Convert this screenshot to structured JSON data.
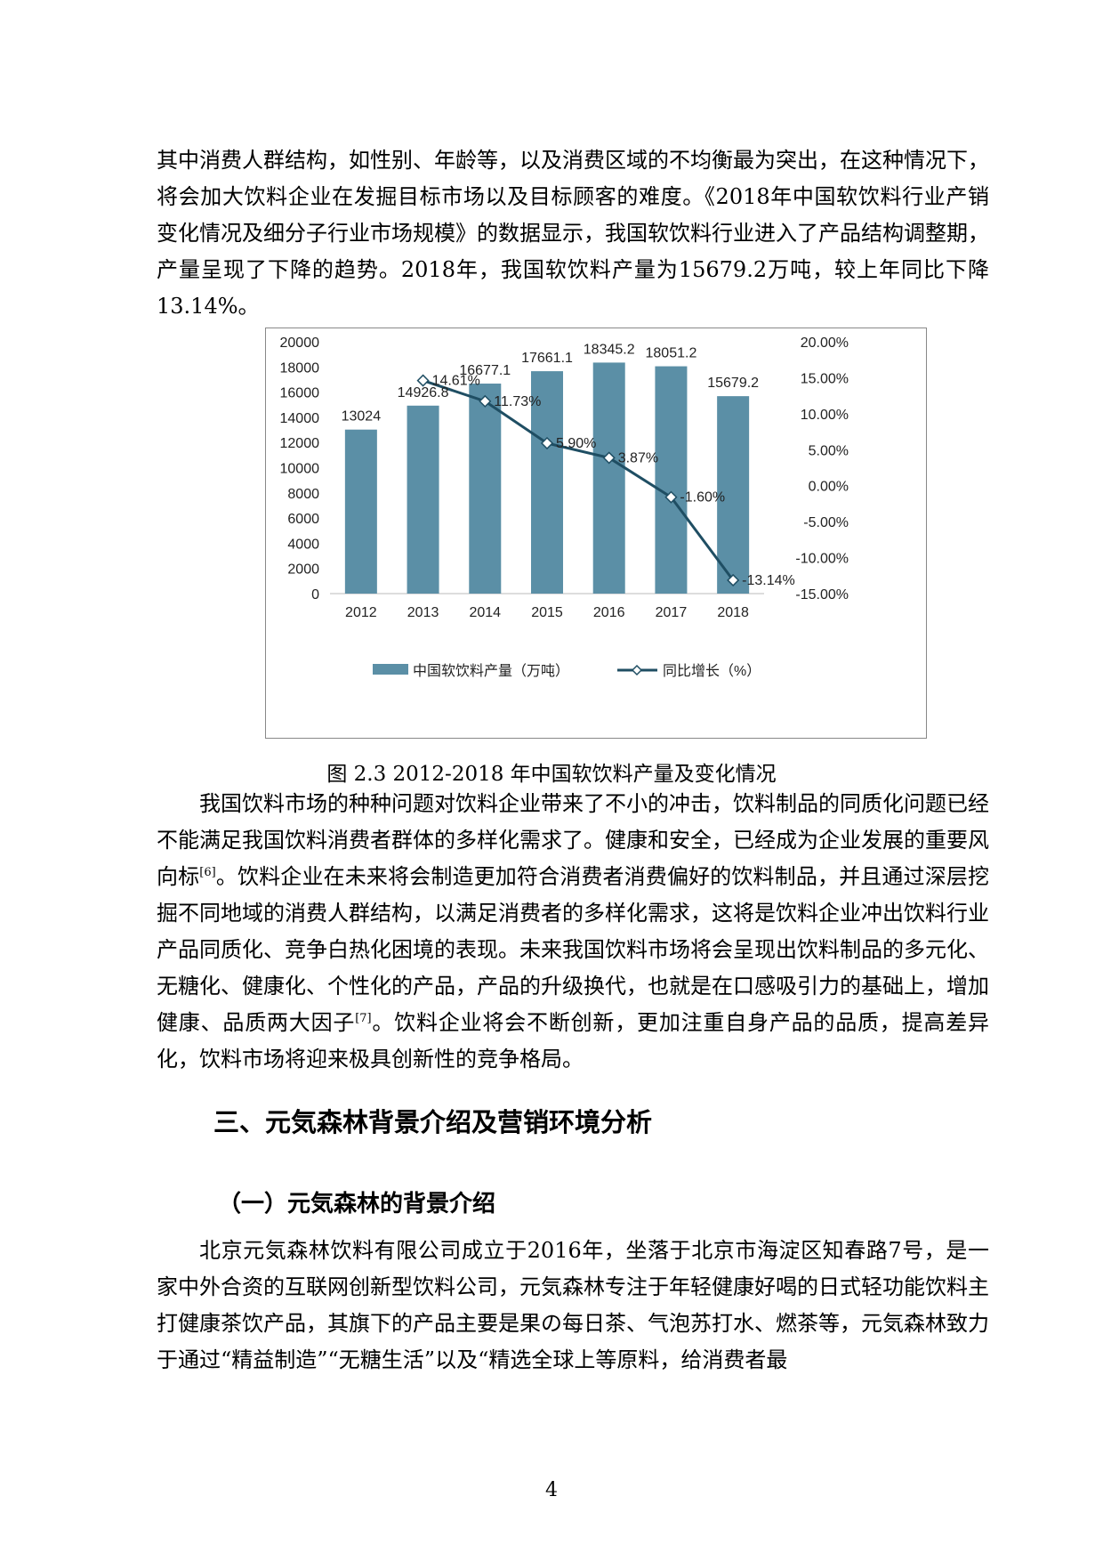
{
  "paragraphs": {
    "p1": "其中消费人群结构，如性别、年龄等，以及消费区域的不均衡最为突出，在这种情况下，将会加大饮料企业在发掘目标市场以及目标顾客的难度。《2018年中国软饮料行业产销变化情况及细分子行业市场规模》的数据显示，我国软饮料行业进入了产品结构调整期，产量呈现了下降的趋势。2018年，我国软饮料产量为15679.2万吨，较上年同比下降13.14%。",
    "p2a": "我国饮料市场的种种问题对饮料企业带来了不小的冲击，饮料制品的同质化问题已经不能满足我国饮料消费者群体的多样化需求了。健康和安全，已经成为企业发展的重要风向标",
    "p2_ref1": "[6]",
    "p2b": "。饮料企业在未来将会制造更加符合消费者消费偏好的饮料制品，并且通过深层挖掘不同地域的消费人群结构，以满足消费者的多样化需求，这将是饮料企业冲出饮料行业产品同质化、竞争白热化困境的表现。未来我国饮料市场将会呈现出饮料制品的多元化、无糖化、健康化、个性化的产品，产品的升级换代，也就是在口感吸引力的基础上，增加健康、品质两大因子",
    "p2_ref2": "[7]",
    "p2c": "。饮料企业将会不断创新，更加注重自身产品的品质，提高差异化，饮料市场将迎来极具创新性的竞争格局。",
    "p3": "北京元気森林饮料有限公司成立于2016年，坐落于北京市海淀区知春路7号，是一家中外合资的互联网创新型饮料公司，元気森林专注于年轻健康好喝的日式轻功能饮料主打健康茶饮产品，其旗下的产品主要是果の每日茶、气泡苏打水、燃茶等，元気森林致力于通过“精益制造”“无糖生活”以及“精选全球上等原料，给消费者最"
  },
  "headings": {
    "h2": "三、元気森林背景介绍及营销环境分析",
    "h3": "（一）元気森林的背景介绍"
  },
  "figure": {
    "caption": "图 2.3  2012-2018 年中国软饮料产量及变化情况"
  },
  "page_number": "4",
  "chart_data": {
    "type": "bar",
    "categories": [
      "2012",
      "2013",
      "2014",
      "2015",
      "2016",
      "2017",
      "2018"
    ],
    "series": [
      {
        "name": "中国软饮料产量（万吨）",
        "type": "bar",
        "axis": "left",
        "values": [
          13024,
          14926.8,
          16677.1,
          17661.1,
          18345.2,
          18051.2,
          15679.2
        ],
        "labels": [
          "13024",
          "14926.8",
          "16677.1",
          "17661.1",
          "18345.2",
          "18051.2",
          "15679.2"
        ],
        "color": "#5b8fa6"
      },
      {
        "name": "同比增长（%）",
        "type": "line",
        "axis": "right",
        "x": [
          "2013",
          "2014",
          "2015",
          "2016",
          "2017",
          "2018"
        ],
        "values": [
          14.61,
          11.73,
          5.9,
          3.87,
          -1.6,
          -13.14
        ],
        "labels": [
          "14.61%",
          "11.73%",
          "5.90%",
          "3.87%",
          "-1.60%",
          "-13.14%"
        ],
        "color": "#1f4e63"
      }
    ],
    "y_left": {
      "range": [
        0,
        20000
      ],
      "ticks": [
        "0",
        "2000",
        "4000",
        "6000",
        "8000",
        "10000",
        "12000",
        "14000",
        "16000",
        "18000",
        "20000"
      ]
    },
    "y_right": {
      "range": [
        -15,
        20
      ],
      "ticks": [
        "-15.00%",
        "-10.00%",
        "-5.00%",
        "0.00%",
        "5.00%",
        "10.00%",
        "15.00%",
        "20.00%"
      ],
      "tick_values": [
        -15,
        -10,
        -5,
        0,
        5,
        10,
        15,
        20
      ]
    },
    "legend": "bottom",
    "grid": false
  }
}
